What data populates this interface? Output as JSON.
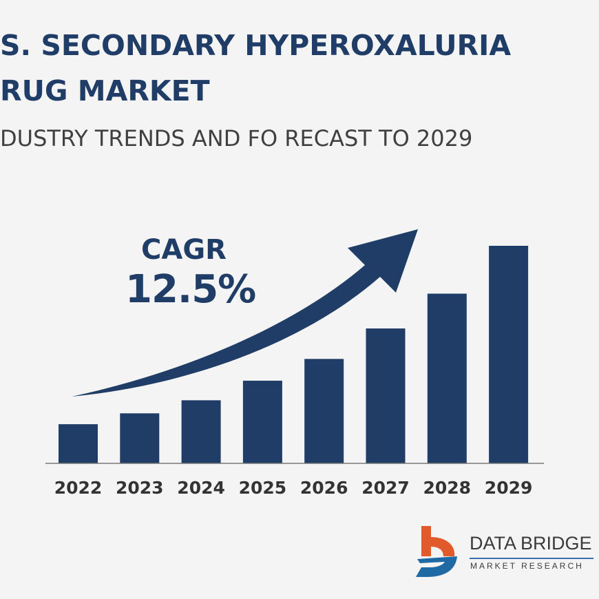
{
  "title_lines": [
    "S. SECONDARY HYPEROXALURIA",
    "RUG MARKET"
  ],
  "subtitle": "DUSTRY TRENDS AND FO RECAST TO 2029",
  "cagr": {
    "label": "CAGR",
    "value": "12.5%"
  },
  "colors": {
    "bars": "#1f3d66",
    "title": "#1f3d66",
    "subtitle": "#404040",
    "background": "#f4f4f4",
    "logo_orange": "#e05a2b",
    "logo_blue": "#1f6aa5"
  },
  "chart_data": {
    "type": "bar",
    "categories": [
      "2022",
      "2023",
      "2024",
      "2025",
      "2026",
      "2027",
      "2028",
      "2029"
    ],
    "values": [
      18,
      23,
      29,
      38,
      48,
      62,
      78,
      100
    ],
    "value_note_visible": false,
    "ylim": [
      0,
      100
    ],
    "grid": false,
    "annotations": [
      "CAGR",
      "12.5%",
      "upward-trend-arrow"
    ]
  },
  "logo": {
    "name": "DATA BRIDGE",
    "tagline": "MARKET RESEARCH"
  }
}
